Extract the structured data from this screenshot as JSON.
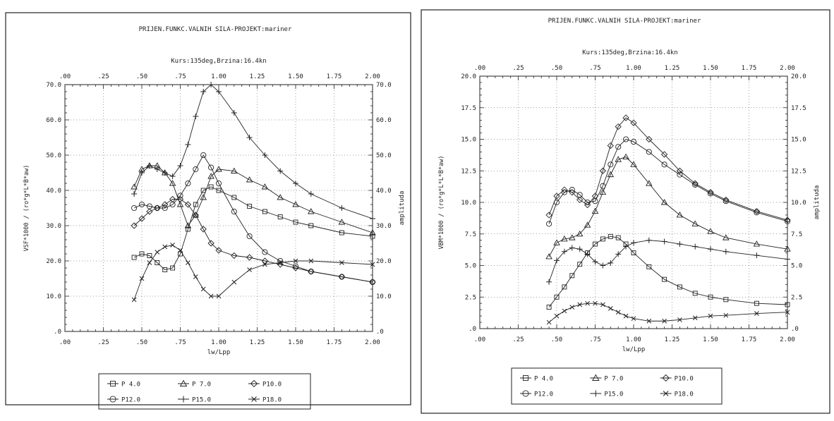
{
  "colors": {
    "ink": "#222222",
    "paper": "#ffffff"
  },
  "chart_data": [
    {
      "type": "line",
      "title": "PRIJEN.FUNKC.VALNIH SILA-PROJEKT:mariner",
      "subtitle": "Kurs:135deg,Brzina:16.4kn",
      "xlabel": "lw/Lpp",
      "ylabel": "VSF*1000 / (ro*g*L*B*aw)",
      "ylabel_right": "amplituda",
      "xlim": [
        0,
        2
      ],
      "ylim": [
        0,
        70
      ],
      "x_ticks": [
        ".00",
        ".25",
        ".50",
        ".75",
        "1.00",
        "1.25",
        "1.50",
        "1.75",
        "2.00"
      ],
      "y_ticks": [
        ".0",
        "10.0",
        "20.0",
        "30.0",
        "40.0",
        "50.0",
        "60.0",
        "70.0"
      ],
      "y_ticks_right": [
        ".0",
        "10.0",
        "20.0",
        "30.0",
        "40.0",
        "50.0",
        "60.0",
        "70.0"
      ],
      "series": [
        {
          "name": "P 4.0",
          "marker": "square",
          "x": [
            0.45,
            0.5,
            0.55,
            0.6,
            0.65,
            0.7,
            0.75,
            0.8,
            0.85,
            0.9,
            0.95,
            1.0,
            1.1,
            1.2,
            1.3,
            1.4,
            1.5,
            1.6,
            1.8,
            2.0
          ],
          "y": [
            21,
            22,
            21.5,
            19.5,
            17.5,
            18,
            22,
            29,
            36,
            40,
            41,
            40,
            38,
            35.5,
            34,
            32.5,
            31,
            30,
            28,
            27
          ]
        },
        {
          "name": "P 7.0",
          "marker": "triangle",
          "x": [
            0.45,
            0.5,
            0.55,
            0.6,
            0.65,
            0.7,
            0.75,
            0.8,
            0.85,
            0.9,
            0.95,
            1.0,
            1.1,
            1.2,
            1.3,
            1.4,
            1.5,
            1.6,
            1.8,
            2.0
          ],
          "y": [
            41,
            46,
            47,
            47,
            45,
            42,
            36,
            30,
            33,
            38,
            44,
            46,
            45.5,
            43,
            41,
            38,
            36,
            34,
            31,
            28
          ]
        },
        {
          "name": "P10.0",
          "marker": "diamond",
          "x": [
            0.45,
            0.5,
            0.55,
            0.6,
            0.65,
            0.7,
            0.75,
            0.8,
            0.85,
            0.9,
            0.95,
            1.0,
            1.1,
            1.2,
            1.3,
            1.4,
            1.5,
            1.6,
            1.8,
            2.0
          ],
          "y": [
            30,
            32,
            34,
            35,
            36,
            37.5,
            37.5,
            36,
            33,
            29,
            25,
            23,
            21.5,
            21,
            20,
            19,
            18,
            17,
            15.5,
            14
          ]
        },
        {
          "name": "P12.0",
          "marker": "circle",
          "x": [
            0.45,
            0.5,
            0.55,
            0.6,
            0.65,
            0.7,
            0.75,
            0.8,
            0.85,
            0.9,
            0.95,
            1.0,
            1.1,
            1.2,
            1.3,
            1.4,
            1.5,
            1.6,
            1.8,
            2.0
          ],
          "y": [
            35,
            36,
            35.5,
            35,
            35,
            36,
            38.5,
            42,
            46,
            50,
            46.5,
            42,
            34,
            27,
            22.5,
            20,
            18.5,
            17,
            15.5,
            14
          ]
        },
        {
          "name": "P15.0",
          "marker": "plus",
          "x": [
            0.45,
            0.5,
            0.55,
            0.6,
            0.65,
            0.7,
            0.75,
            0.8,
            0.85,
            0.9,
            0.95,
            1.0,
            1.1,
            1.2,
            1.3,
            1.4,
            1.5,
            1.6,
            1.8,
            2.0
          ],
          "y": [
            39,
            45,
            47,
            46,
            45,
            44,
            47,
            53,
            61,
            68,
            70,
            68,
            62,
            55,
            50,
            45.5,
            42,
            39,
            35,
            32
          ]
        },
        {
          "name": "P18.0",
          "marker": "cross",
          "x": [
            0.45,
            0.5,
            0.55,
            0.6,
            0.65,
            0.7,
            0.75,
            0.8,
            0.85,
            0.9,
            0.95,
            1.0,
            1.1,
            1.2,
            1.3,
            1.4,
            1.5,
            1.6,
            1.8,
            2.0
          ],
          "y": [
            9,
            15,
            19.5,
            22.5,
            24,
            24.5,
            23,
            19.5,
            15.5,
            12,
            10,
            10,
            14,
            17.5,
            19,
            19.5,
            20,
            20,
            19.5,
            19
          ]
        }
      ],
      "legend": "bottom"
    },
    {
      "type": "line",
      "title": "PRIJEN.FUNKC.VALNIH SILA-PROJEKT:mariner",
      "subtitle": "Kurs:135deg,Brzina:16.4kn",
      "xlabel": "lw/Lpp",
      "ylabel": "VBM*1000 / (ro*g*L*L*B*aw)",
      "ylabel_right": "amplituda",
      "xlim": [
        0,
        2
      ],
      "ylim": [
        0,
        20
      ],
      "x_ticks": [
        ".00",
        ".25",
        ".50",
        ".75",
        "1.00",
        "1.25",
        "1.50",
        "1.75",
        "2.00"
      ],
      "y_ticks": [
        ".0",
        "2.5",
        "5.0",
        "7.5",
        "10.0",
        "12.5",
        "15.0",
        "17.5",
        "20.0"
      ],
      "y_ticks_right": [
        ".0",
        "2.5",
        "5.0",
        "7.5",
        "10.0",
        "12.5",
        "15.0",
        "17.5",
        "20.0"
      ],
      "series": [
        {
          "name": "P 4.0",
          "marker": "square",
          "x": [
            0.45,
            0.5,
            0.55,
            0.6,
            0.65,
            0.7,
            0.75,
            0.8,
            0.85,
            0.9,
            0.95,
            1.0,
            1.1,
            1.2,
            1.3,
            1.4,
            1.5,
            1.6,
            1.8,
            2.0
          ],
          "y": [
            1.7,
            2.5,
            3.3,
            4.2,
            5.1,
            6,
            6.7,
            7.1,
            7.3,
            7.2,
            6.7,
            6,
            4.9,
            3.9,
            3.3,
            2.8,
            2.5,
            2.3,
            2.0,
            1.9
          ]
        },
        {
          "name": "P 7.0",
          "marker": "triangle",
          "x": [
            0.45,
            0.5,
            0.55,
            0.6,
            0.65,
            0.7,
            0.75,
            0.8,
            0.85,
            0.9,
            0.95,
            1.0,
            1.1,
            1.2,
            1.3,
            1.4,
            1.5,
            1.6,
            1.8,
            2.0
          ],
          "y": [
            5.7,
            6.8,
            7.1,
            7.2,
            7.5,
            8.2,
            9.3,
            10.8,
            12.2,
            13.4,
            13.6,
            13,
            11.5,
            10,
            9,
            8.3,
            7.7,
            7.2,
            6.7,
            6.3
          ]
        },
        {
          "name": "P10.0",
          "marker": "diamond",
          "x": [
            0.45,
            0.5,
            0.55,
            0.6,
            0.65,
            0.7,
            0.75,
            0.8,
            0.85,
            0.9,
            0.95,
            1.0,
            1.1,
            1.2,
            1.3,
            1.4,
            1.5,
            1.6,
            1.8,
            2.0
          ],
          "y": [
            9,
            10.5,
            11,
            10.8,
            10.2,
            9.8,
            10.5,
            12.5,
            14.5,
            16,
            16.7,
            16.3,
            15,
            13.8,
            12.5,
            11.5,
            10.8,
            10.2,
            9.3,
            8.6
          ]
        },
        {
          "name": "P12.0",
          "marker": "circle",
          "x": [
            0.45,
            0.5,
            0.55,
            0.6,
            0.65,
            0.7,
            0.75,
            0.8,
            0.85,
            0.9,
            0.95,
            1.0,
            1.1,
            1.2,
            1.3,
            1.4,
            1.5,
            1.6,
            1.8,
            2.0
          ],
          "y": [
            8.3,
            10,
            10.8,
            11,
            10.6,
            10,
            10.1,
            11.3,
            13,
            14.4,
            15,
            14.8,
            14,
            13,
            12.2,
            11.4,
            10.7,
            10.1,
            9.2,
            8.5
          ]
        },
        {
          "name": "P15.0",
          "marker": "plus",
          "x": [
            0.45,
            0.5,
            0.55,
            0.6,
            0.65,
            0.7,
            0.75,
            0.8,
            0.85,
            0.9,
            0.95,
            1.0,
            1.1,
            1.2,
            1.3,
            1.4,
            1.5,
            1.6,
            1.8,
            2.0
          ],
          "y": [
            3.7,
            5.4,
            6.1,
            6.4,
            6.3,
            5.9,
            5.3,
            5,
            5.2,
            5.9,
            6.5,
            6.8,
            7,
            6.9,
            6.7,
            6.5,
            6.3,
            6.1,
            5.8,
            5.5
          ]
        },
        {
          "name": "P18.0",
          "marker": "cross",
          "x": [
            0.45,
            0.5,
            0.55,
            0.6,
            0.65,
            0.7,
            0.75,
            0.8,
            0.85,
            0.9,
            0.95,
            1.0,
            1.1,
            1.2,
            1.3,
            1.4,
            1.5,
            1.6,
            1.8,
            2.0
          ],
          "y": [
            0.5,
            1,
            1.4,
            1.7,
            1.9,
            2,
            2,
            1.9,
            1.6,
            1.3,
            1,
            0.8,
            0.6,
            0.6,
            0.7,
            0.85,
            1,
            1.05,
            1.2,
            1.3
          ]
        }
      ],
      "legend": "bottom"
    }
  ]
}
